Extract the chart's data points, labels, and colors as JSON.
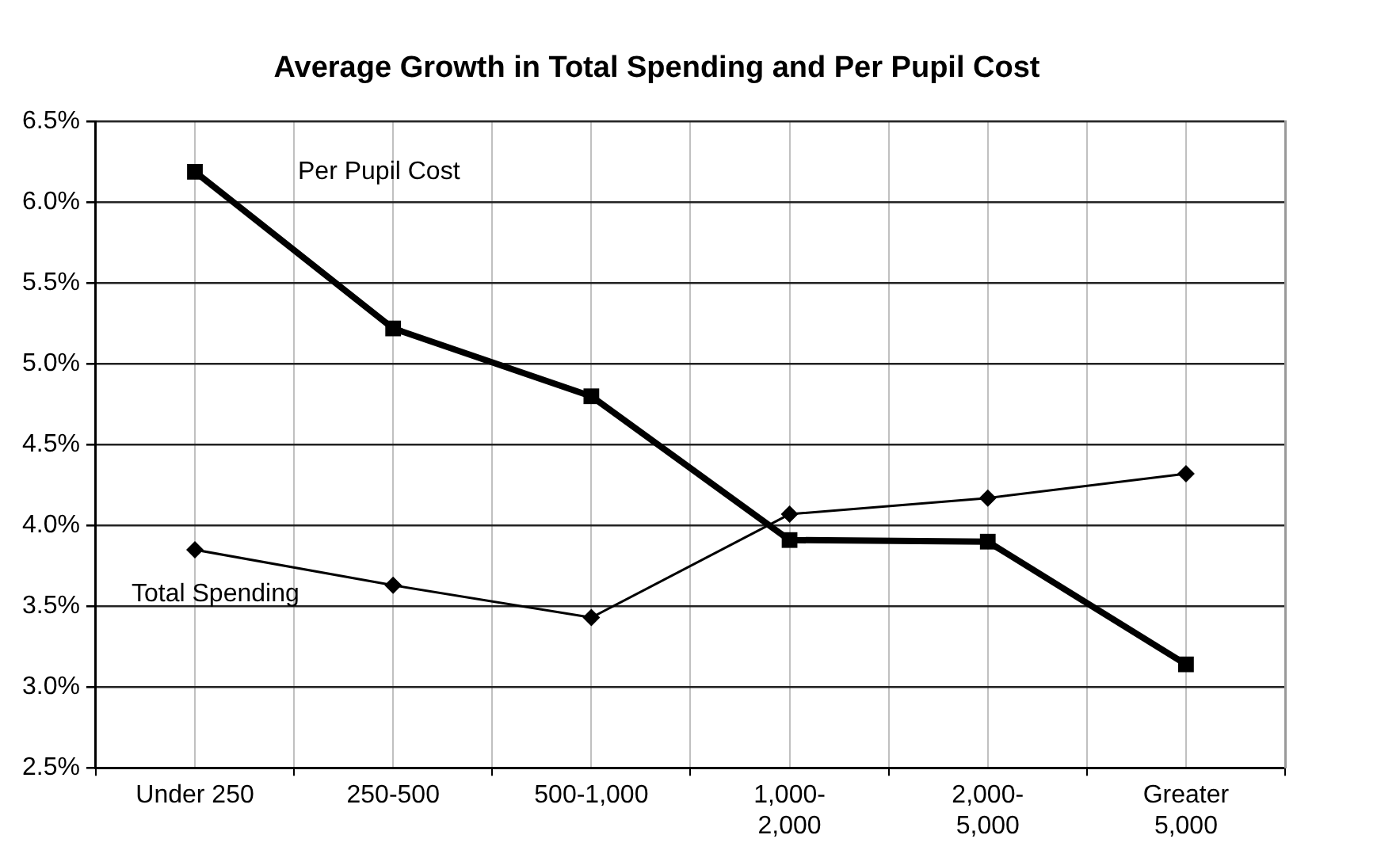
{
  "chart_data": {
    "type": "line",
    "title": "Average Growth in Total Spending and Per Pupil Cost",
    "categories": [
      "Under 250",
      "250-500",
      "500-1,000",
      "1,000-\n2,000",
      "2,000-\n5,000",
      "Greater\n5,000"
    ],
    "series": [
      {
        "name": "Per Pupil Cost",
        "color": "#000000",
        "marker": "square",
        "values": [
          6.19,
          5.22,
          4.8,
          3.91,
          3.9,
          3.14
        ]
      },
      {
        "name": "Total Spending",
        "color": "#000000",
        "marker": "diamond",
        "values": [
          3.85,
          3.63,
          3.43,
          4.07,
          4.17,
          4.32
        ]
      }
    ],
    "ylim": [
      2.5,
      6.5
    ],
    "yticks": [
      {
        "value": 2.5,
        "label": "2.5%"
      },
      {
        "value": 3.0,
        "label": "3.0%"
      },
      {
        "value": 3.5,
        "label": "3.5%"
      },
      {
        "value": 4.0,
        "label": "4.0%"
      },
      {
        "value": 4.5,
        "label": "4.5%"
      },
      {
        "value": 5.0,
        "label": "5.0%"
      },
      {
        "value": 5.5,
        "label": "5.5%"
      },
      {
        "value": 6.0,
        "label": "6.0%"
      },
      {
        "value": 6.5,
        "label": "6.5%"
      }
    ],
    "grid": true,
    "legend": false
  }
}
